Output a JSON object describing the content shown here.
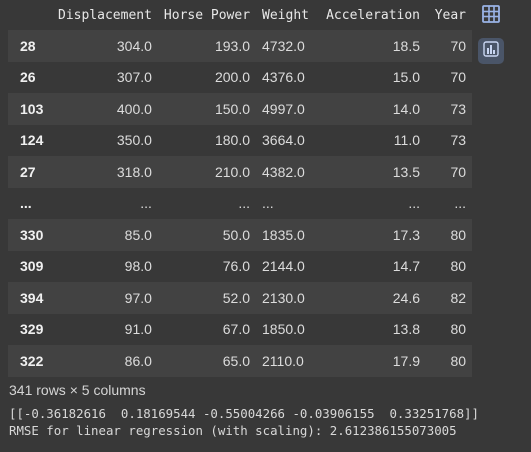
{
  "table": {
    "columns": [
      "",
      "Displacement",
      "Horse Power",
      "Weight",
      "Acceleration",
      "Year"
    ],
    "rows": [
      [
        "28",
        "304.0",
        "193.0",
        "4732.0",
        "18.5",
        "70"
      ],
      [
        "26",
        "307.0",
        "200.0",
        "4376.0",
        "15.0",
        "70"
      ],
      [
        "103",
        "400.0",
        "150.0",
        "4997.0",
        "14.0",
        "73"
      ],
      [
        "124",
        "350.0",
        "180.0",
        "3664.0",
        "11.0",
        "73"
      ],
      [
        "27",
        "318.0",
        "210.0",
        "4382.0",
        "13.5",
        "70"
      ],
      [
        "...",
        "...",
        "...",
        "...",
        "...",
        "..."
      ],
      [
        "330",
        "85.0",
        "50.0",
        "1835.0",
        "17.3",
        "80"
      ],
      [
        "309",
        "98.0",
        "76.0",
        "2144.0",
        "14.7",
        "80"
      ],
      [
        "394",
        "97.0",
        "52.0",
        "2130.0",
        "24.6",
        "82"
      ],
      [
        "329",
        "91.0",
        "67.0",
        "1850.0",
        "13.8",
        "80"
      ],
      [
        "322",
        "86.0",
        "65.0",
        "2110.0",
        "17.9",
        "80"
      ]
    ]
  },
  "shape_text": "341 rows × 5 columns",
  "stdout": {
    "line1": "[[-0.36182616  0.18169544 -0.55004266 -0.03906155  0.33251768]]",
    "line2": "RMSE for linear regression (with scaling): 2.612386155073005"
  },
  "side_buttons": {
    "table_icon": "table-icon",
    "chart_icon": "bar-chart-icon"
  },
  "colors": {
    "background": "#383838",
    "row_stripe": "#424242",
    "chart_button_bg": "#4a5568",
    "icon_color": "#9ab3e6"
  }
}
